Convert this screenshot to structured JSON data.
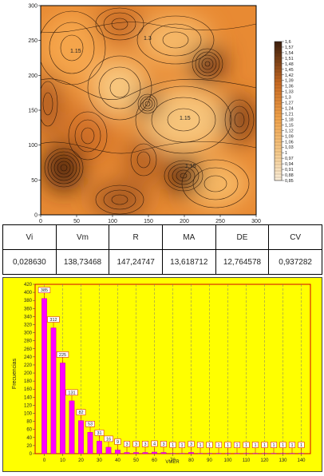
{
  "chart_data": [
    {
      "type": "heatmap",
      "title": "",
      "xlabel": "",
      "ylabel": "",
      "xlim": [
        0,
        300
      ],
      "ylim": [
        0,
        300
      ],
      "x_ticks": [
        "0",
        "50",
        "100",
        "150",
        "200",
        "250",
        "300"
      ],
      "y_ticks": [
        "0",
        "50",
        "100",
        "150",
        "200",
        "250",
        "300"
      ],
      "contour_labels": [
        "1.15",
        "1.15",
        "1.15",
        "1.3"
      ],
      "colorbar": {
        "min": 0.85,
        "max": 1.6,
        "low_color": "#f8ecd8",
        "high_color": "#3a1d0c",
        "ticks": [
          "1,6",
          "1,57",
          "1,54",
          "1,51",
          "1,48",
          "1,45",
          "1,42",
          "1,39",
          "1,36",
          "1,33",
          "1,3",
          "1,27",
          "1,24",
          "1,21",
          "1,18",
          "1,15",
          "1,12",
          "1,09",
          "1,06",
          "1,03",
          "1",
          "0,97",
          "0,94",
          "0,91",
          "0,88",
          "0,85"
        ]
      },
      "grid": false
    },
    {
      "type": "table",
      "headers": [
        "Vi",
        "Vm",
        "R",
        "MA",
        "DE",
        "CV"
      ],
      "rows": [
        [
          "0,028630",
          "138,73468",
          "147,24747",
          "13,618712",
          "12,764578",
          "0,937282"
        ]
      ]
    },
    {
      "type": "bar",
      "title": "",
      "xlabel": "VMER",
      "ylabel": "Frecuencias",
      "ylim": [
        0,
        420
      ],
      "xlim": [
        -5,
        145
      ],
      "y_ticks": [
        0,
        20,
        40,
        60,
        80,
        100,
        120,
        140,
        160,
        180,
        200,
        220,
        240,
        260,
        280,
        300,
        320,
        340,
        360,
        380,
        400,
        420
      ],
      "x_ticks": [
        0,
        10,
        20,
        30,
        40,
        50,
        60,
        70,
        80,
        90,
        100,
        110,
        120,
        130,
        140
      ],
      "grid": true,
      "bar_color": "#ff00ff",
      "background_color": "#ffff00",
      "x": [
        0,
        5,
        10,
        15,
        20,
        25,
        30,
        35,
        40,
        45,
        50,
        55,
        60,
        65,
        70,
        75,
        80,
        85,
        90,
        95,
        100,
        105,
        110,
        115,
        120,
        125,
        130,
        135,
        140
      ],
      "values": [
        385,
        312,
        225,
        131,
        82,
        53,
        31,
        16,
        9,
        3,
        3,
        3,
        4,
        3,
        1,
        1,
        3,
        1,
        1,
        1,
        1,
        1,
        1,
        1,
        1,
        1,
        1,
        1,
        1
      ],
      "data_labels": [
        "385",
        "312",
        "225",
        "131",
        "82",
        "53",
        "31",
        "16",
        "9",
        "3",
        "3",
        "3",
        "4",
        "3",
        "1",
        "1",
        "3",
        "1",
        "1",
        "1",
        "1",
        "1",
        "1",
        "1",
        "1",
        "1",
        "1",
        "1",
        "1"
      ]
    }
  ]
}
